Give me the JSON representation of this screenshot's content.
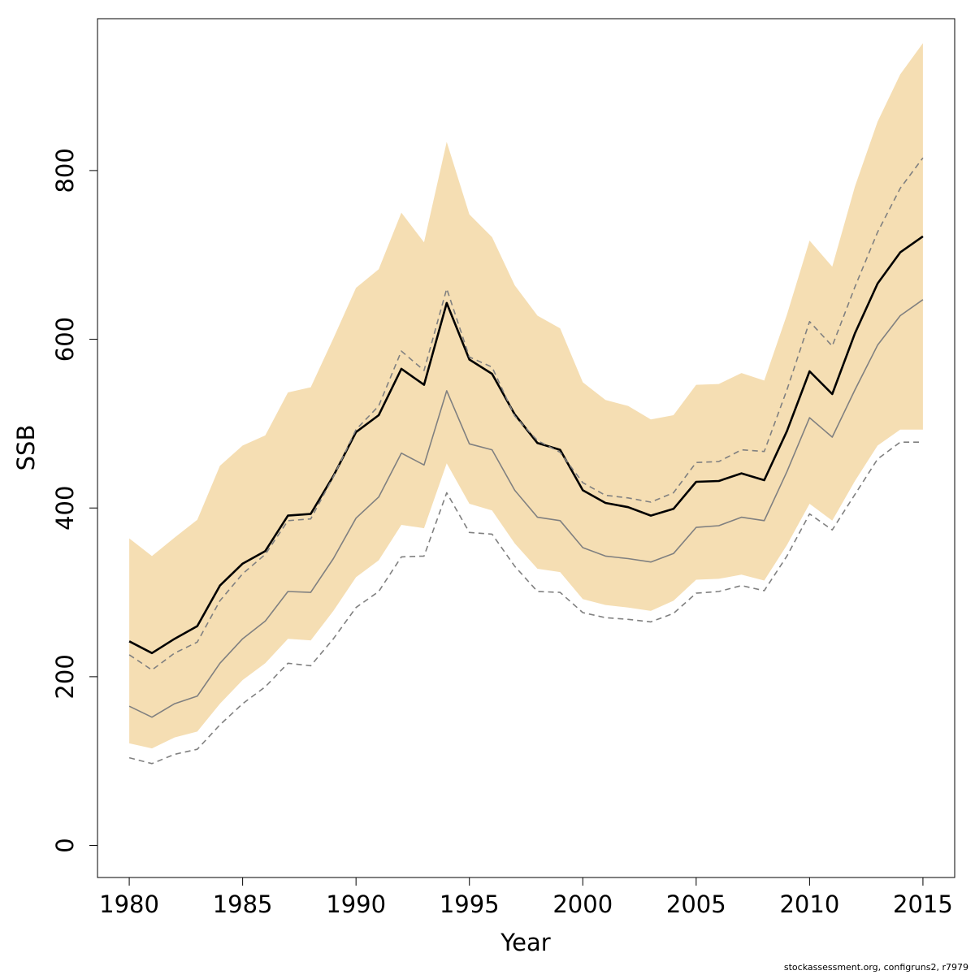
{
  "chart_data": {
    "type": "area",
    "xlabel": "Year",
    "ylabel": "SSB",
    "xlim": [
      1978.6,
      2016.4
    ],
    "ylim": [
      -38,
      980
    ],
    "x_ticks": [
      1980,
      1985,
      1990,
      1995,
      2000,
      2005,
      2010,
      2015
    ],
    "y_ticks": [
      0,
      200,
      400,
      600,
      800
    ],
    "x": [
      1980,
      1981,
      1982,
      1983,
      1984,
      1985,
      1986,
      1987,
      1988,
      1989,
      1990,
      1991,
      1992,
      1993,
      1994,
      1995,
      1996,
      1997,
      1998,
      1999,
      2000,
      2001,
      2002,
      2003,
      2004,
      2005,
      2006,
      2007,
      2008,
      2009,
      2010,
      2011,
      2012,
      2013,
      2014,
      2015
    ],
    "band": {
      "color": "#f5deb3",
      "upper": [
        364,
        343,
        365,
        386,
        450,
        474,
        486,
        537,
        543,
        601,
        661,
        683,
        750,
        715,
        834,
        748,
        721,
        664,
        628,
        613,
        549,
        528,
        521,
        505,
        510,
        546,
        547,
        560,
        551,
        629,
        717,
        686,
        781,
        858,
        914,
        951
      ],
      "lower": [
        121,
        115,
        128,
        135,
        168,
        196,
        216,
        245,
        243,
        278,
        318,
        338,
        380,
        376,
        453,
        405,
        397,
        358,
        328,
        324,
        292,
        285,
        282,
        278,
        290,
        315,
        316,
        321,
        314,
        356,
        405,
        385,
        432,
        474,
        493,
        493
      ]
    },
    "series": [
      {
        "color": "#000000",
        "style": "solid",
        "values": [
          242,
          228,
          245,
          260,
          308,
          334,
          349,
          391,
          393,
          438,
          490,
          510,
          565,
          546,
          643,
          576,
          559,
          511,
          477,
          469,
          421,
          406,
          401,
          391,
          399,
          431,
          432,
          441,
          433,
          491,
          562,
          535,
          607,
          666,
          703,
          722
        ]
      },
      {
        "color": "#808080",
        "style": "dashed",
        "values": [
          226,
          208,
          228,
          241,
          290,
          322,
          345,
          385,
          387,
          437,
          493,
          521,
          586,
          563,
          660,
          579,
          567,
          509,
          480,
          466,
          430,
          415,
          412,
          407,
          418,
          454,
          455,
          469,
          467,
          540,
          621,
          592,
          662,
          727,
          779,
          815
        ]
      },
      {
        "color": "#808080",
        "style": "solid",
        "values": [
          165,
          152,
          168,
          177,
          216,
          245,
          266,
          301,
          300,
          340,
          388,
          413,
          465,
          451,
          539,
          476,
          469,
          421,
          389,
          385,
          353,
          343,
          340,
          336,
          346,
          377,
          379,
          389,
          385,
          443,
          507,
          484,
          540,
          593,
          628,
          647
        ]
      },
      {
        "color": "#808080",
        "style": "dashed",
        "values": [
          104,
          97,
          108,
          114,
          143,
          168,
          188,
          216,
          213,
          245,
          282,
          301,
          342,
          343,
          418,
          371,
          369,
          331,
          301,
          300,
          276,
          270,
          268,
          265,
          275,
          299,
          301,
          308,
          302,
          343,
          393,
          374,
          416,
          458,
          478,
          478
        ]
      }
    ]
  },
  "footer": "stockassessment.org, configruns2, r7979"
}
